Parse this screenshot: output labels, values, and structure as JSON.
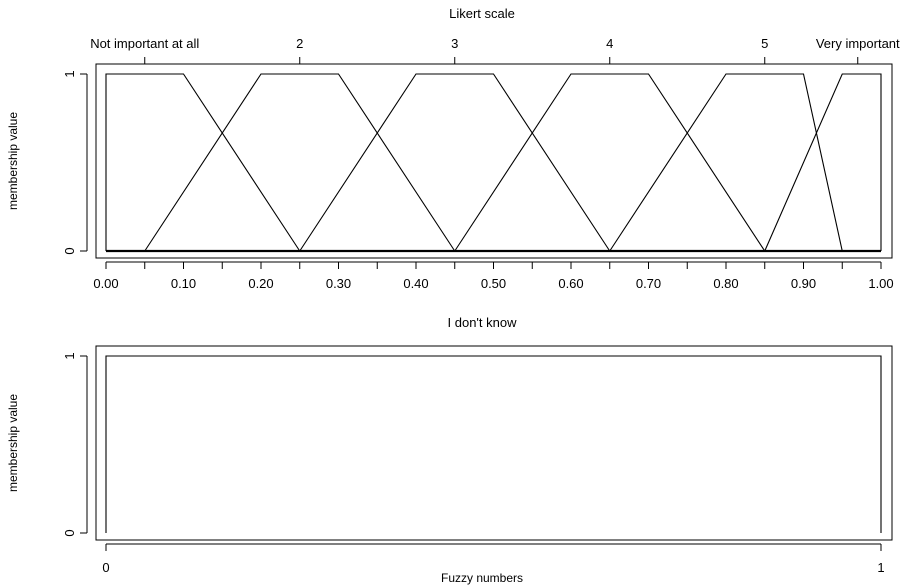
{
  "chart_data": [
    {
      "type": "line",
      "title": "Likert scale",
      "xlabel": "",
      "ylabel": "membership value",
      "xlim": [
        0,
        1
      ],
      "ylim": [
        0,
        1
      ],
      "x_ticks": [
        "0.00",
        "0.10",
        "0.20",
        "0.30",
        "0.40",
        "0.50",
        "0.60",
        "0.70",
        "0.80",
        "0.90",
        "1.00"
      ],
      "y_ticks": [
        "0",
        "1"
      ],
      "top_axis_labels": [
        {
          "label": "Not important at all",
          "value": 0.05
        },
        {
          "label": "2",
          "value": 0.25
        },
        {
          "label": "3",
          "value": 0.45
        },
        {
          "label": "4",
          "value": 0.65
        },
        {
          "label": "5",
          "value": 0.85
        },
        {
          "label": "Very important",
          "value": 0.97
        }
      ],
      "series": [
        {
          "x": [
            0.0,
            0.0,
            0.1,
            0.25
          ],
          "y": [
            0,
            1,
            1,
            0
          ]
        },
        {
          "x": [
            0.05,
            0.2,
            0.3,
            0.45
          ],
          "y": [
            0,
            1,
            1,
            0
          ]
        },
        {
          "x": [
            0.25,
            0.4,
            0.5,
            0.65
          ],
          "y": [
            0,
            1,
            1,
            0
          ]
        },
        {
          "x": [
            0.45,
            0.6,
            0.7,
            0.85
          ],
          "y": [
            0,
            1,
            1,
            0
          ]
        },
        {
          "x": [
            0.65,
            0.8,
            0.9,
            0.95
          ],
          "y": [
            0,
            1,
            1,
            0
          ]
        },
        {
          "x": [
            0.85,
            0.95,
            1.0,
            1.0
          ],
          "y": [
            0,
            1,
            1,
            0
          ]
        }
      ],
      "grid": false
    },
    {
      "type": "line",
      "title": "I don't know",
      "xlabel": "Fuzzy numbers",
      "ylabel": "membership value",
      "xlim": [
        0,
        1
      ],
      "ylim": [
        0,
        1
      ],
      "x_ticks": [
        "0",
        "1"
      ],
      "y_ticks": [
        "0",
        "1"
      ],
      "series": [
        {
          "x": [
            0,
            0,
            1,
            1
          ],
          "y": [
            0,
            1,
            1,
            0
          ]
        }
      ],
      "grid": false
    }
  ]
}
